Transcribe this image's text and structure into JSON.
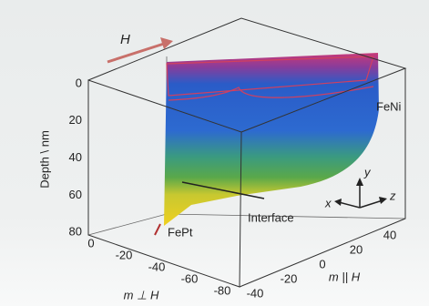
{
  "figure": {
    "field_label": "H",
    "layer_labels": {
      "top": "FeNi",
      "interface": "Interface",
      "bottom": "FePt"
    },
    "depth_axis": {
      "label": "Depth \\ nm",
      "ticks": [
        0,
        20,
        40,
        60,
        80
      ]
    },
    "perp_axis": {
      "label": "m ⊥ H",
      "ticks": [
        0,
        -20,
        -40,
        -60,
        -80
      ]
    },
    "par_axis": {
      "label": "m || H",
      "ticks": [
        -40,
        -20,
        0,
        20,
        40
      ]
    },
    "triad": {
      "x": "x",
      "y": "y",
      "z": "z"
    }
  }
}
